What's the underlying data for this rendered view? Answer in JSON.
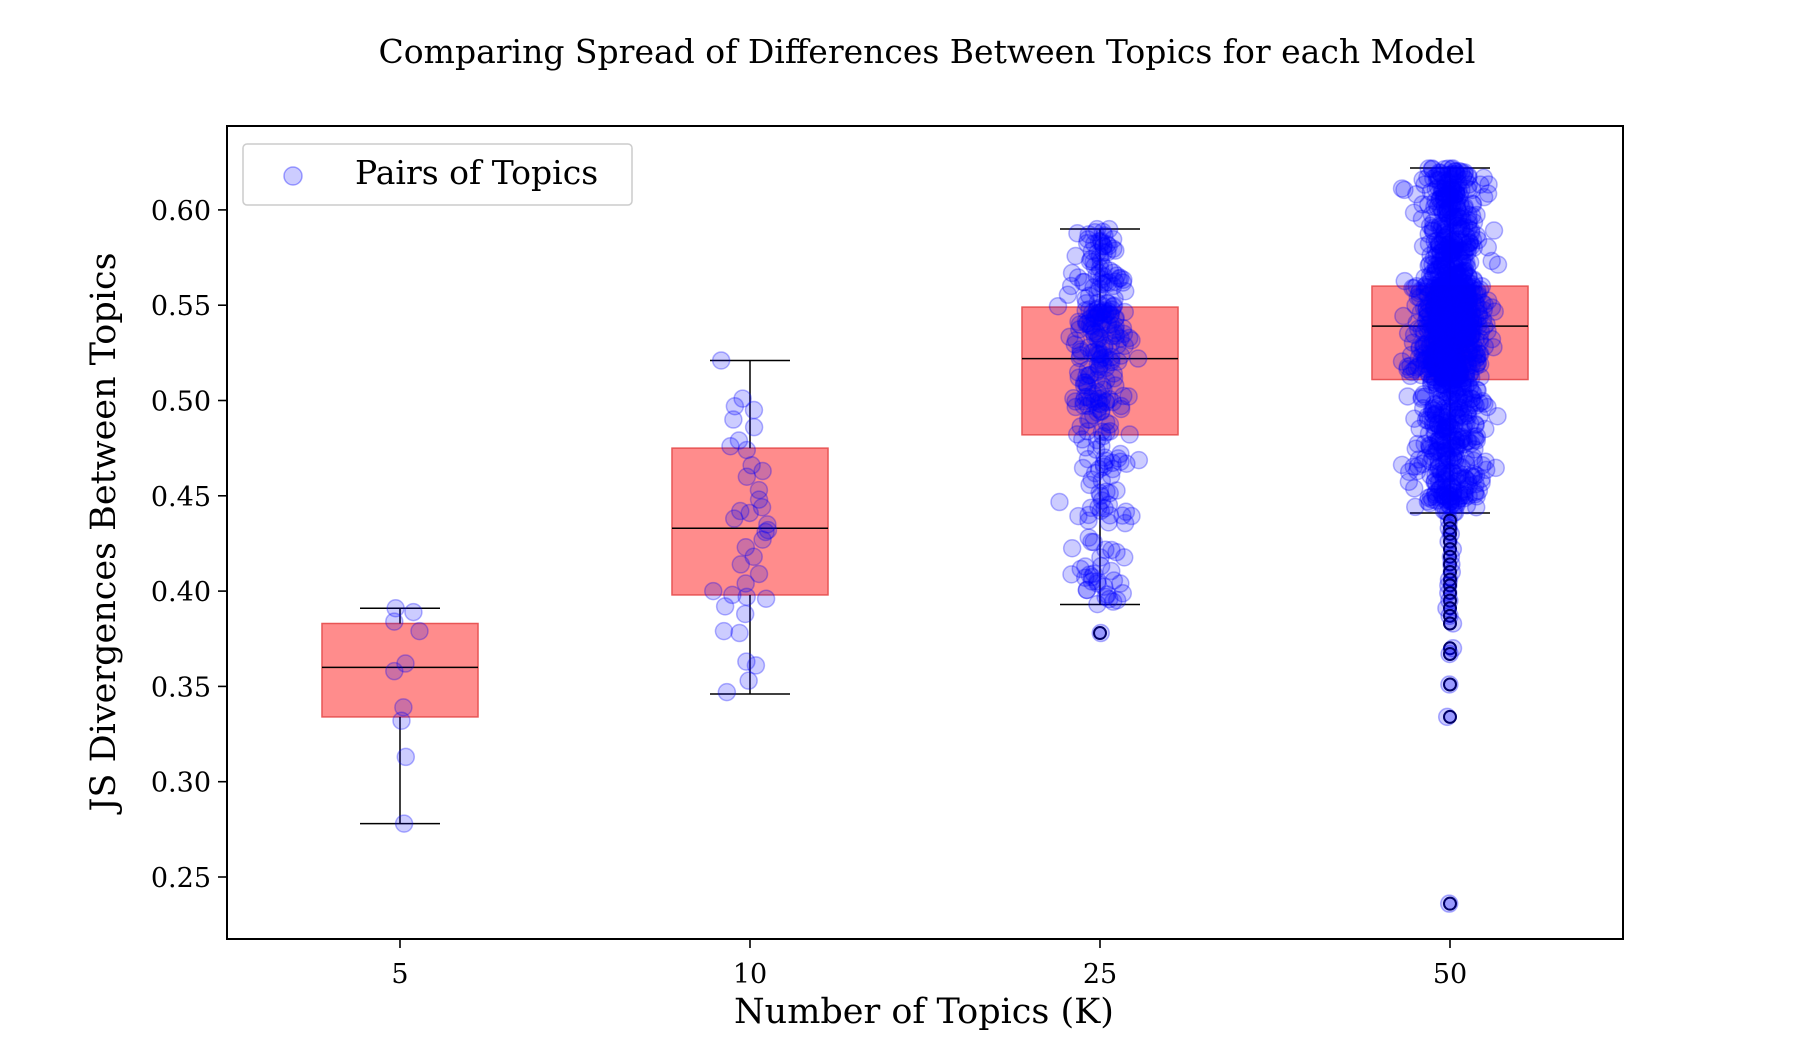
{
  "chart_data": {
    "type": "box",
    "title": "Comparing Spread of Differences Between Topics for each Model",
    "xlabel": "Number of Topics (K)",
    "ylabel": "JS Divergences Between Topics",
    "categories": [
      "5",
      "10",
      "25",
      "50"
    ],
    "ylim": [
      0.215,
      0.64
    ],
    "yticks": [
      0.25,
      0.3,
      0.35,
      0.4,
      0.45,
      0.5,
      0.55,
      0.6
    ],
    "ytick_labels": [
      "0.25",
      "0.30",
      "0.35",
      "0.40",
      "0.45",
      "0.50",
      "0.55",
      "0.60"
    ],
    "grid": false,
    "legend": {
      "position": "top-left",
      "entries": [
        "Pairs of Topics"
      ]
    },
    "colors": {
      "box_fill": "#ff7f7f",
      "box_edge": "#e85555",
      "points": "#0000ff",
      "whisker": "#000000"
    },
    "boxes": [
      {
        "category": "5",
        "whislo": 0.278,
        "q1": 0.334,
        "median": 0.36,
        "q3": 0.383,
        "whishi": 0.391,
        "fliers": []
      },
      {
        "category": "10",
        "whislo": 0.346,
        "q1": 0.398,
        "median": 0.433,
        "q3": 0.475,
        "whishi": 0.521,
        "fliers": []
      },
      {
        "category": "25",
        "whislo": 0.393,
        "q1": 0.482,
        "median": 0.522,
        "q3": 0.549,
        "whishi": 0.59,
        "fliers": [
          0.378
        ]
      },
      {
        "category": "50",
        "whislo": 0.441,
        "q1": 0.511,
        "median": 0.539,
        "q3": 0.56,
        "whishi": 0.622,
        "fliers": [
          0.437,
          0.433,
          0.43,
          0.426,
          0.422,
          0.418,
          0.414,
          0.41,
          0.406,
          0.403,
          0.399,
          0.395,
          0.391,
          0.387,
          0.383,
          0.37,
          0.367,
          0.351,
          0.334,
          0.236
        ]
      }
    ],
    "series": [
      {
        "name": "Pairs of Topics",
        "category": "5",
        "values": [
          0.391,
          0.389,
          0.384,
          0.379,
          0.362,
          0.358,
          0.339,
          0.332,
          0.313,
          0.278
        ]
      },
      {
        "category": "10",
        "values": [
          0.521,
          0.501,
          0.497,
          0.495,
          0.49,
          0.486,
          0.479,
          0.476,
          0.474,
          0.466,
          0.463,
          0.46,
          0.453,
          0.448,
          0.444,
          0.442,
          0.441,
          0.438,
          0.435,
          0.432,
          0.431,
          0.427,
          0.423,
          0.418,
          0.414,
          0.409,
          0.404,
          0.4,
          0.398,
          0.397,
          0.396,
          0.392,
          0.388,
          0.379,
          0.378,
          0.363,
          0.361,
          0.353,
          0.347
        ]
      }
    ]
  }
}
